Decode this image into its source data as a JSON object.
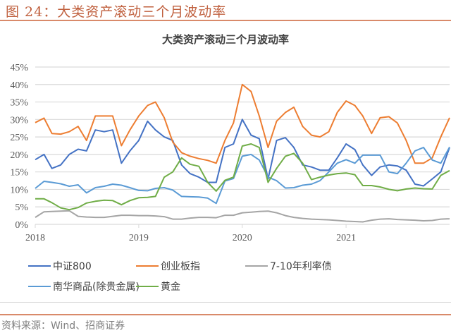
{
  "figure_label": "图 24：大类资产滚动三个月波动率",
  "source": "资料来源：Wind、招商证券",
  "chart_data": {
    "type": "line",
    "title": "大类资产滚动三个月波动率",
    "xlabel": "",
    "ylabel": "",
    "x_tick_labels": [
      "2018",
      "2019",
      "2020",
      "2021"
    ],
    "y_tick_labels": [
      "0%",
      "5%",
      "10%",
      "15%",
      "20%",
      "25%",
      "30%",
      "35%",
      "40%",
      "45%"
    ],
    "ylim": [
      0,
      45
    ],
    "xlim": [
      "2018-01-01",
      "2022-01-01"
    ],
    "y_unit": "%",
    "grid": "horizontal",
    "legend_position": "bottom",
    "x": [
      "2018-01-01",
      "2018-02-01",
      "2018-03-01",
      "2018-04-01",
      "2018-05-01",
      "2018-06-01",
      "2018-07-01",
      "2018-08-01",
      "2018-09-01",
      "2018-10-01",
      "2018-11-01",
      "2018-12-01",
      "2019-01-01",
      "2019-02-01",
      "2019-03-01",
      "2019-04-01",
      "2019-05-01",
      "2019-06-01",
      "2019-07-01",
      "2019-08-01",
      "2019-09-01",
      "2019-10-01",
      "2019-11-01",
      "2019-12-01",
      "2020-01-01",
      "2020-02-01",
      "2020-03-01",
      "2020-04-01",
      "2020-05-01",
      "2020-06-01",
      "2020-07-01",
      "2020-08-01",
      "2020-09-01",
      "2020-10-01",
      "2020-11-01",
      "2020-12-01",
      "2021-01-01",
      "2021-02-01",
      "2021-03-01",
      "2021-04-01",
      "2021-05-01",
      "2021-06-01",
      "2021-07-01",
      "2021-08-01",
      "2021-09-01",
      "2021-10-01",
      "2021-11-01",
      "2021-12-01",
      "2022-01-01"
    ],
    "series": [
      {
        "name": "中证800",
        "color": "#4472c4",
        "values": [
          18.5,
          20,
          16,
          17,
          20,
          21.5,
          21,
          27,
          26.5,
          27,
          17.5,
          21,
          24,
          29.5,
          27,
          25,
          24,
          17,
          14.5,
          13.5,
          12,
          12,
          22,
          23,
          30,
          25.5,
          24.5,
          13,
          24,
          24.8,
          22,
          17,
          16.4,
          15.5,
          15.5,
          19,
          23,
          21.4,
          17,
          14,
          16.4,
          17,
          16.7,
          15.5,
          11.5,
          11,
          13,
          15,
          22
        ]
      },
      {
        "name": "创业板指",
        "color": "#ed7d31",
        "values": [
          29.1,
          30.4,
          26,
          25.8,
          26.5,
          28,
          24,
          31,
          31,
          31,
          22.5,
          27,
          31,
          34,
          35,
          30.5,
          23.5,
          20.5,
          19.5,
          18.8,
          18.3,
          17.5,
          24,
          29,
          40,
          38,
          31,
          22,
          29.5,
          32,
          33.5,
          28,
          25.5,
          25,
          26.5,
          32,
          35.3,
          34,
          31,
          26,
          30.5,
          30.8,
          29,
          24,
          17.5,
          17.5,
          19,
          25,
          30.5
        ]
      },
      {
        "name": "7-10年利率债",
        "color": "#a5a5a5",
        "values": [
          2,
          3.6,
          3.7,
          3.8,
          3.9,
          2.3,
          2.1,
          2,
          2,
          2.3,
          2.6,
          2.6,
          2.5,
          2.5,
          2.4,
          2.2,
          1.5,
          1.5,
          1.8,
          2,
          2,
          1.9,
          2.6,
          2.6,
          3.3,
          3.5,
          3.7,
          3.8,
          3.3,
          2.5,
          2,
          1.7,
          1.5,
          1.4,
          1.3,
          1.1,
          0.9,
          0.8,
          0.7,
          1.2,
          1.5,
          1.6,
          1.4,
          1.3,
          1.2,
          1,
          1.1,
          1.5,
          1.6
        ]
      },
      {
        "name": "南华商品(除贵金属)",
        "color": "#5b9bd5",
        "values": [
          10.3,
          12.3,
          12,
          11.6,
          10.9,
          11.3,
          9,
          10.5,
          10.9,
          11.5,
          11.2,
          10.5,
          9.7,
          9.6,
          10.3,
          10.5,
          9.8,
          8,
          7.9,
          7.8,
          7.5,
          6,
          12.4,
          13.1,
          19.5,
          20,
          18.4,
          13.5,
          12.5,
          10.4,
          10.5,
          11.2,
          11.5,
          12.5,
          15,
          17.5,
          18.5,
          17.5,
          19.8,
          19.8,
          19.8,
          15,
          14.5,
          17.5,
          21,
          22,
          18.4,
          17.5,
          22.1
        ]
      },
      {
        "name": "黄金",
        "color": "#70ad47",
        "values": [
          7.3,
          7.3,
          6.2,
          4.7,
          4.2,
          4.8,
          6.1,
          6.6,
          6.9,
          6.8,
          5.6,
          6.8,
          7.6,
          7.7,
          8,
          13.5,
          15,
          19,
          17.2,
          16.6,
          12,
          9.5,
          12.6,
          13.5,
          22.4,
          23,
          22,
          12,
          16,
          19.5,
          20.3,
          17.5,
          12.8,
          13.5,
          14.1,
          14.5,
          14.7,
          14.2,
          11.1,
          11.1,
          10.7,
          10,
          9.6,
          10.1,
          10.4,
          10.2,
          10.1,
          14,
          15.4
        ]
      }
    ]
  }
}
